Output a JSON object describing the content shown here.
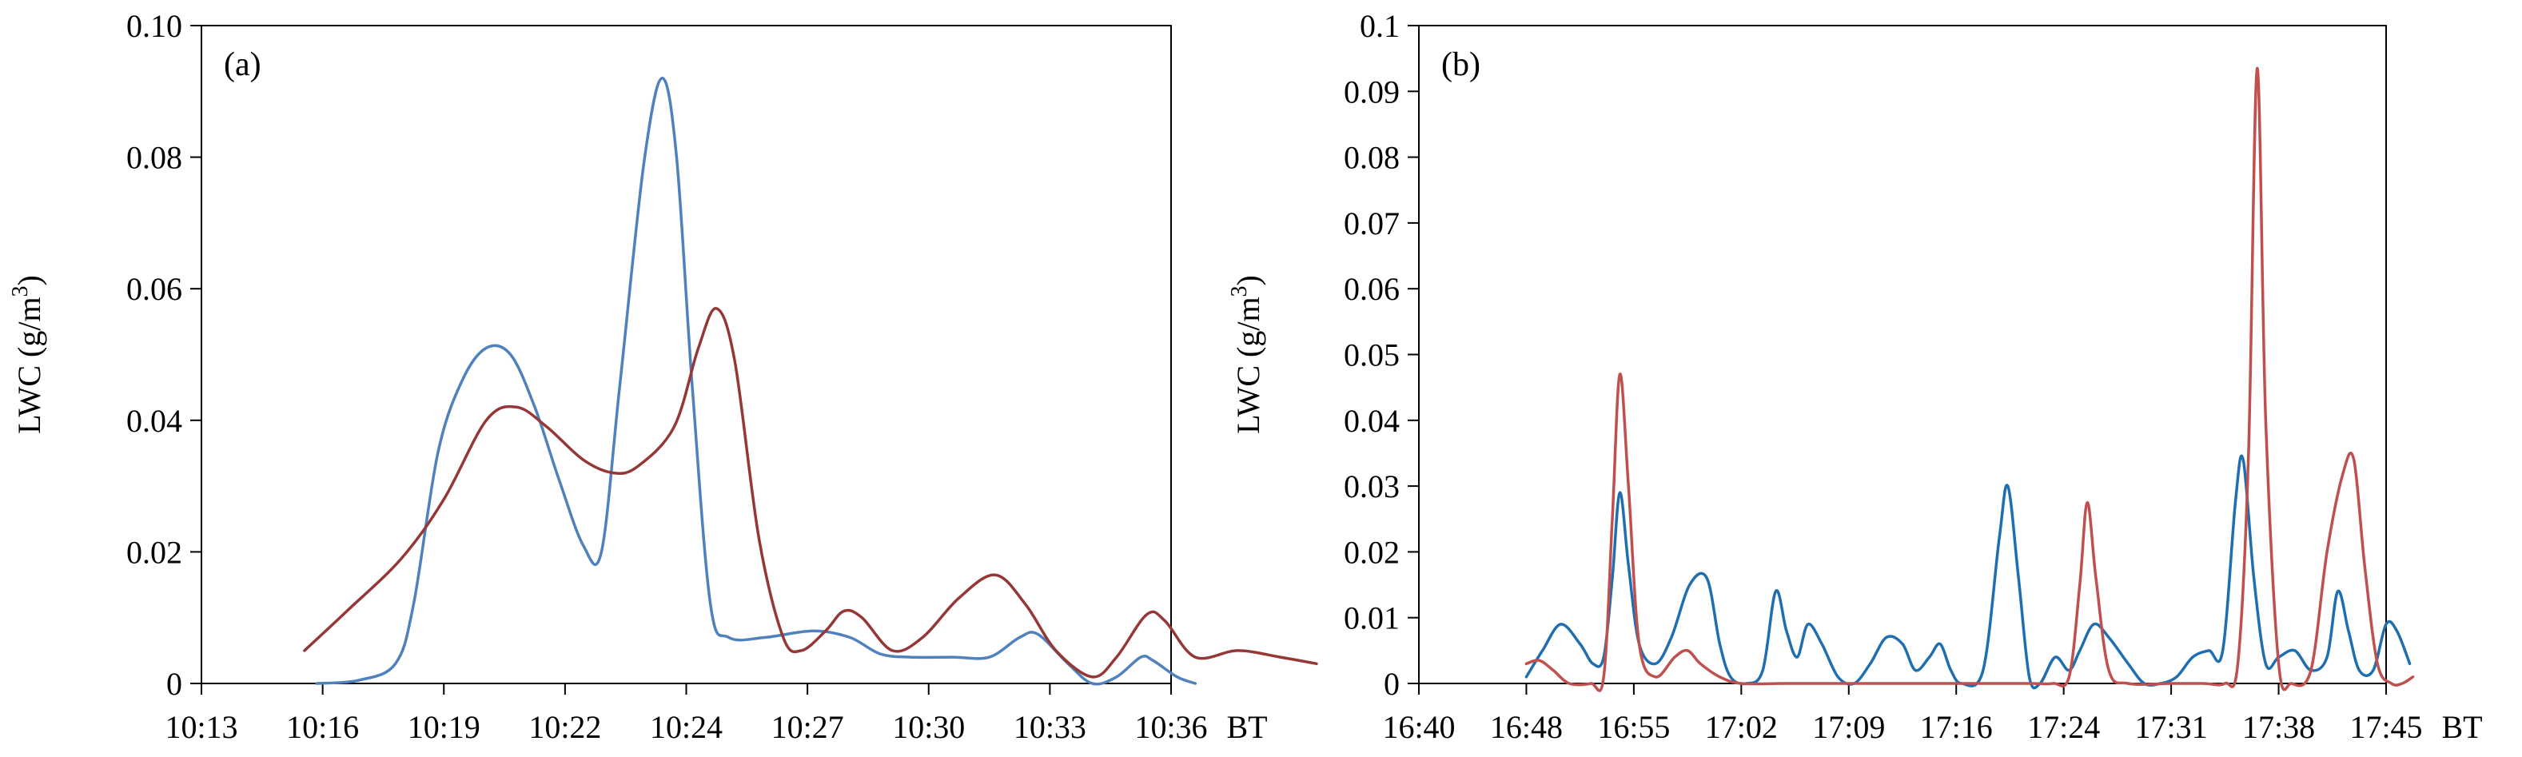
{
  "chart_data": [
    {
      "type": "line",
      "panel_label": "(a)",
      "ylabel": "LWC (g/m",
      "ylabel_sup": "3",
      "ylabel_close": ")",
      "x_unit": "BT",
      "ylim": [
        0,
        0.1
      ],
      "y_ticks": [
        "0",
        "0.02",
        "0.04",
        "0.06",
        "0.08",
        "0.10"
      ],
      "y_tick_values": [
        0,
        0.02,
        0.04,
        0.06,
        0.08,
        0.1
      ],
      "x_ticks": [
        "10:13",
        "10:16",
        "10:19",
        "10:22",
        "10:24",
        "10:27",
        "10:30",
        "10:33",
        "10:36"
      ],
      "grid": false,
      "series": [
        {
          "color": "#4f81bd",
          "points": [
            [
              0.95,
              0.0
            ],
            [
              1.3,
              0.0005
            ],
            [
              1.6,
              0.003
            ],
            [
              1.75,
              0.012
            ],
            [
              1.95,
              0.035
            ],
            [
              2.15,
              0.046
            ],
            [
              2.35,
              0.051
            ],
            [
              2.55,
              0.05
            ],
            [
              2.75,
              0.042
            ],
            [
              2.95,
              0.031
            ],
            [
              3.15,
              0.021
            ],
            [
              3.3,
              0.02
            ],
            [
              3.45,
              0.045
            ],
            [
              3.65,
              0.079
            ],
            [
              3.8,
              0.092
            ],
            [
              3.92,
              0.08
            ],
            [
              4.05,
              0.045
            ],
            [
              4.2,
              0.012
            ],
            [
              4.35,
              0.007
            ],
            [
              4.65,
              0.007
            ],
            [
              5.05,
              0.008
            ],
            [
              5.35,
              0.007
            ],
            [
              5.6,
              0.0045
            ],
            [
              5.85,
              0.004
            ],
            [
              6.2,
              0.004
            ],
            [
              6.5,
              0.004
            ],
            [
              6.75,
              0.007
            ],
            [
              6.9,
              0.0075
            ],
            [
              7.15,
              0.003
            ],
            [
              7.35,
              0.0
            ],
            [
              7.55,
              0.001
            ],
            [
              7.75,
              0.004
            ],
            [
              7.85,
              0.0035
            ],
            [
              8.05,
              0.001
            ],
            [
              8.2,
              0.0
            ]
          ]
        },
        {
          "color": "#953735",
          "points": [
            [
              0.85,
              0.005
            ],
            [
              1.2,
              0.011
            ],
            [
              1.65,
              0.019
            ],
            [
              2.0,
              0.028
            ],
            [
              2.35,
              0.04
            ],
            [
              2.6,
              0.042
            ],
            [
              2.85,
              0.039
            ],
            [
              3.15,
              0.034
            ],
            [
              3.4,
              0.032
            ],
            [
              3.6,
              0.033
            ],
            [
              3.9,
              0.039
            ],
            [
              4.1,
              0.051
            ],
            [
              4.25,
              0.057
            ],
            [
              4.4,
              0.049
            ],
            [
              4.6,
              0.022
            ],
            [
              4.8,
              0.007
            ],
            [
              4.95,
              0.005
            ],
            [
              5.15,
              0.008
            ],
            [
              5.3,
              0.011
            ],
            [
              5.45,
              0.01
            ],
            [
              5.7,
              0.005
            ],
            [
              5.95,
              0.007
            ],
            [
              6.25,
              0.013
            ],
            [
              6.55,
              0.0165
            ],
            [
              6.8,
              0.012
            ],
            [
              7.05,
              0.005
            ],
            [
              7.35,
              0.001
            ],
            [
              7.55,
              0.004
            ],
            [
              7.8,
              0.0105
            ],
            [
              7.95,
              0.0095
            ],
            [
              8.2,
              0.004
            ],
            [
              8.55,
              0.005
            ],
            [
              8.9,
              0.004
            ],
            [
              9.2,
              0.003
            ]
          ]
        }
      ]
    },
    {
      "type": "line",
      "panel_label": "(b)",
      "ylabel": "LWC (g/m",
      "ylabel_sup": "3",
      "ylabel_close": ")",
      "x_unit": "BT",
      "ylim": [
        0,
        0.1
      ],
      "y_ticks": [
        "0",
        "0.01",
        "0.02",
        "0.03",
        "0.04",
        "0.05",
        "0.06",
        "0.07",
        "0.08",
        "0.09",
        "0.1"
      ],
      "y_tick_values": [
        0,
        0.01,
        0.02,
        0.03,
        0.04,
        0.05,
        0.06,
        0.07,
        0.08,
        0.09,
        0.1
      ],
      "x_ticks": [
        "16:40",
        "16:48",
        "16:55",
        "17:02",
        "17:09",
        "17:16",
        "17:24",
        "17:31",
        "17:38",
        "17:45"
      ],
      "grid": false,
      "series": [
        {
          "color": "#1f6eb0",
          "points": [
            [
              1.0,
              0.001
            ],
            [
              1.15,
              0.005
            ],
            [
              1.32,
              0.009
            ],
            [
              1.5,
              0.006
            ],
            [
              1.62,
              0.003
            ],
            [
              1.72,
              0.004
            ],
            [
              1.8,
              0.016
            ],
            [
              1.87,
              0.029
            ],
            [
              1.95,
              0.018
            ],
            [
              2.05,
              0.006
            ],
            [
              2.2,
              0.003
            ],
            [
              2.35,
              0.007
            ],
            [
              2.52,
              0.015
            ],
            [
              2.68,
              0.016
            ],
            [
              2.8,
              0.006
            ],
            [
              2.9,
              0.001
            ],
            [
              3.05,
              0.0
            ],
            [
              3.2,
              0.002
            ],
            [
              3.32,
              0.014
            ],
            [
              3.42,
              0.008
            ],
            [
              3.52,
              0.004
            ],
            [
              3.62,
              0.009
            ],
            [
              3.75,
              0.006
            ],
            [
              3.9,
              0.001
            ],
            [
              4.05,
              0.0
            ],
            [
              4.2,
              0.003
            ],
            [
              4.35,
              0.007
            ],
            [
              4.5,
              0.006
            ],
            [
              4.62,
              0.002
            ],
            [
              4.75,
              0.004
            ],
            [
              4.85,
              0.006
            ],
            [
              4.95,
              0.002
            ],
            [
              5.05,
              0.0
            ],
            [
              5.25,
              0.002
            ],
            [
              5.4,
              0.022
            ],
            [
              5.48,
              0.03
            ],
            [
              5.58,
              0.016
            ],
            [
              5.68,
              0.001
            ],
            [
              5.78,
              0.0
            ],
            [
              5.92,
              0.004
            ],
            [
              6.05,
              0.002
            ],
            [
              6.15,
              0.005
            ],
            [
              6.28,
              0.009
            ],
            [
              6.42,
              0.007
            ],
            [
              6.6,
              0.003
            ],
            [
              6.75,
              0.0
            ],
            [
              6.9,
              0.0
            ],
            [
              7.05,
              0.001
            ],
            [
              7.2,
              0.004
            ],
            [
              7.35,
              0.005
            ],
            [
              7.48,
              0.005
            ],
            [
              7.6,
              0.028
            ],
            [
              7.67,
              0.034
            ],
            [
              7.77,
              0.016
            ],
            [
              7.88,
              0.003
            ],
            [
              8.0,
              0.004
            ],
            [
              8.15,
              0.005
            ],
            [
              8.3,
              0.002
            ],
            [
              8.45,
              0.004
            ],
            [
              8.55,
              0.014
            ],
            [
              8.65,
              0.008
            ],
            [
              8.75,
              0.002
            ],
            [
              8.88,
              0.002
            ],
            [
              9.0,
              0.009
            ],
            [
              9.1,
              0.008
            ],
            [
              9.22,
              0.003
            ]
          ]
        },
        {
          "color": "#c0504d",
          "points": [
            [
              1.0,
              0.003
            ],
            [
              1.12,
              0.0035
            ],
            [
              1.25,
              0.002
            ],
            [
              1.4,
              0.0
            ],
            [
              1.6,
              0.0
            ],
            [
              1.72,
              0.001
            ],
            [
              1.8,
              0.025
            ],
            [
              1.87,
              0.047
            ],
            [
              1.95,
              0.03
            ],
            [
              2.05,
              0.006
            ],
            [
              2.2,
              0.001
            ],
            [
              2.38,
              0.004
            ],
            [
              2.5,
              0.005
            ],
            [
              2.62,
              0.003
            ],
            [
              2.8,
              0.001
            ],
            [
              3.0,
              0.0
            ],
            [
              3.4,
              0.0
            ],
            [
              4.0,
              0.0
            ],
            [
              4.6,
              0.0
            ],
            [
              5.2,
              0.0
            ],
            [
              5.7,
              0.0
            ],
            [
              5.9,
              0.0
            ],
            [
              6.05,
              0.001
            ],
            [
              6.15,
              0.015
            ],
            [
              6.22,
              0.0275
            ],
            [
              6.3,
              0.016
            ],
            [
              6.42,
              0.002
            ],
            [
              6.6,
              0.0
            ],
            [
              7.0,
              0.0
            ],
            [
              7.3,
              0.0
            ],
            [
              7.5,
              0.0
            ],
            [
              7.62,
              0.003
            ],
            [
              7.72,
              0.035
            ],
            [
              7.8,
              0.0935
            ],
            [
              7.88,
              0.04
            ],
            [
              8.0,
              0.003
            ],
            [
              8.12,
              0.0
            ],
            [
              8.3,
              0.002
            ],
            [
              8.45,
              0.02
            ],
            [
              8.6,
              0.032
            ],
            [
              8.7,
              0.034
            ],
            [
              8.8,
              0.018
            ],
            [
              8.92,
              0.003
            ],
            [
              9.05,
              0.0
            ],
            [
              9.15,
              0.0
            ],
            [
              9.25,
              0.001
            ]
          ]
        }
      ]
    }
  ]
}
